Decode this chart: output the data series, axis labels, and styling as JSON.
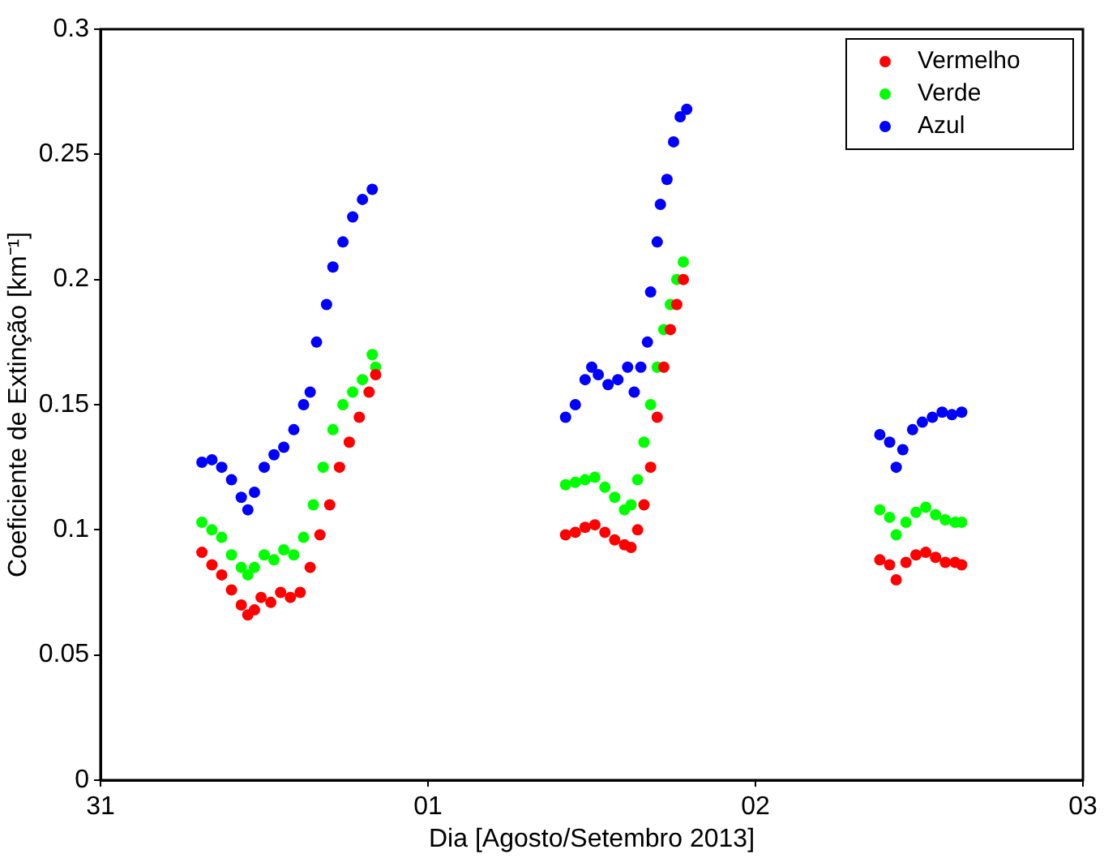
{
  "chart_data": {
    "type": "scatter",
    "xlabel": "Dia [Agosto/Setembro 2013]",
    "ylabel": "Coeficiente de Extinção [km⁻¹]",
    "xlim": [
      "2013-08-31",
      "2013-09-03"
    ],
    "xticks": [
      {
        "value": "2013-08-31",
        "label": "31"
      },
      {
        "value": "2013-09-01",
        "label": "01"
      },
      {
        "value": "2013-09-02",
        "label": "02"
      },
      {
        "value": "2013-09-03",
        "label": "03"
      }
    ],
    "ylim": [
      0,
      0.3
    ],
    "yticks": [
      0,
      0.05,
      0.1,
      0.15,
      0.2,
      0.25,
      0.3
    ],
    "grid": false,
    "legend": "top right",
    "marker": "circle",
    "series": [
      {
        "name": "Vermelho",
        "color": "#ff0000",
        "x": [
          "2013-08-31T07:26",
          "2013-08-31T08:10",
          "2013-08-31T08:53",
          "2013-08-31T09:36",
          "2013-08-31T10:19",
          "2013-08-31T10:48",
          "2013-08-31T11:17",
          "2013-08-31T11:46",
          "2013-08-31T12:29",
          "2013-08-31T13:12",
          "2013-08-31T13:55",
          "2013-08-31T14:38",
          "2013-08-31T15:22",
          "2013-08-31T16:05",
          "2013-08-31T16:48",
          "2013-08-31T17:31",
          "2013-08-31T18:14",
          "2013-08-31T18:58",
          "2013-08-31T19:41",
          "2013-08-31T20:10",
          "2013-09-01T10:05",
          "2013-09-01T10:48",
          "2013-09-01T11:31",
          "2013-09-01T12:14",
          "2013-09-01T12:58",
          "2013-09-01T13:41",
          "2013-09-01T14:24",
          "2013-09-01T14:53",
          "2013-09-01T15:22",
          "2013-09-01T15:50",
          "2013-09-01T16:19",
          "2013-09-01T16:48",
          "2013-09-01T17:17",
          "2013-09-01T17:46",
          "2013-09-01T18:14",
          "2013-09-01T18:43",
          "2013-09-02T09:07",
          "2013-09-02T09:50",
          "2013-09-02T10:19",
          "2013-09-02T11:02",
          "2013-09-02T11:46",
          "2013-09-02T12:29",
          "2013-09-02T13:12",
          "2013-09-02T13:55",
          "2013-09-02T14:38",
          "2013-09-02T15:07"
        ],
        "values": [
          0.091,
          0.086,
          0.082,
          0.076,
          0.07,
          0.066,
          0.068,
          0.073,
          0.071,
          0.075,
          0.073,
          0.075,
          0.085,
          0.098,
          0.11,
          0.125,
          0.135,
          0.145,
          0.155,
          0.162,
          0.098,
          0.099,
          0.101,
          0.102,
          0.099,
          0.096,
          0.094,
          0.093,
          0.1,
          0.11,
          0.125,
          0.145,
          0.165,
          0.18,
          0.19,
          0.2,
          0.088,
          0.086,
          0.08,
          0.087,
          0.09,
          0.091,
          0.089,
          0.087,
          0.087,
          0.086
        ]
      },
      {
        "name": "Verde",
        "color": "#00ff00",
        "x": [
          "2013-08-31T07:26",
          "2013-08-31T08:10",
          "2013-08-31T08:53",
          "2013-08-31T09:36",
          "2013-08-31T10:19",
          "2013-08-31T10:48",
          "2013-08-31T11:17",
          "2013-08-31T12:00",
          "2013-08-31T12:43",
          "2013-08-31T13:26",
          "2013-08-31T14:10",
          "2013-08-31T14:53",
          "2013-08-31T15:36",
          "2013-08-31T16:19",
          "2013-08-31T17:02",
          "2013-08-31T17:46",
          "2013-08-31T18:29",
          "2013-08-31T19:12",
          "2013-08-31T19:55",
          "2013-08-31T20:10",
          "2013-09-01T10:05",
          "2013-09-01T10:48",
          "2013-09-01T11:31",
          "2013-09-01T12:14",
          "2013-09-01T12:58",
          "2013-09-01T13:41",
          "2013-09-01T14:24",
          "2013-09-01T14:53",
          "2013-09-01T15:22",
          "2013-09-01T15:50",
          "2013-09-01T16:19",
          "2013-09-01T16:48",
          "2013-09-01T17:17",
          "2013-09-01T17:46",
          "2013-09-01T18:14",
          "2013-09-01T18:43",
          "2013-09-02T09:07",
          "2013-09-02T09:50",
          "2013-09-02T10:19",
          "2013-09-02T11:02",
          "2013-09-02T11:46",
          "2013-09-02T12:29",
          "2013-09-02T13:12",
          "2013-09-02T13:55",
          "2013-09-02T14:38",
          "2013-09-02T15:07"
        ],
        "values": [
          0.103,
          0.1,
          0.097,
          0.09,
          0.085,
          0.082,
          0.085,
          0.09,
          0.088,
          0.092,
          0.09,
          0.097,
          0.11,
          0.125,
          0.14,
          0.15,
          0.155,
          0.16,
          0.17,
          0.165,
          0.118,
          0.119,
          0.12,
          0.121,
          0.117,
          0.113,
          0.108,
          0.11,
          0.12,
          0.135,
          0.15,
          0.165,
          0.18,
          0.19,
          0.2,
          0.207,
          0.108,
          0.105,
          0.098,
          0.103,
          0.107,
          0.109,
          0.106,
          0.104,
          0.103,
          0.103
        ]
      },
      {
        "name": "Azul",
        "color": "#0000ff",
        "x": [
          "2013-08-31T07:26",
          "2013-08-31T08:10",
          "2013-08-31T08:53",
          "2013-08-31T09:36",
          "2013-08-31T10:19",
          "2013-08-31T10:48",
          "2013-08-31T11:17",
          "2013-08-31T12:00",
          "2013-08-31T12:43",
          "2013-08-31T13:26",
          "2013-08-31T14:10",
          "2013-08-31T14:53",
          "2013-08-31T15:22",
          "2013-08-31T15:50",
          "2013-08-31T16:34",
          "2013-08-31T17:02",
          "2013-08-31T17:46",
          "2013-08-31T18:29",
          "2013-08-31T19:12",
          "2013-08-31T19:55",
          "2013-09-01T10:05",
          "2013-09-01T10:48",
          "2013-09-01T11:31",
          "2013-09-01T12:00",
          "2013-09-01T12:29",
          "2013-09-01T13:12",
          "2013-09-01T13:55",
          "2013-09-01T14:38",
          "2013-09-01T15:07",
          "2013-09-01T15:36",
          "2013-09-01T16:05",
          "2013-09-01T16:19",
          "2013-09-01T16:48",
          "2013-09-01T17:02",
          "2013-09-01T17:31",
          "2013-09-01T18:00",
          "2013-09-01T18:29",
          "2013-09-01T18:58",
          "2013-09-02T09:07",
          "2013-09-02T09:50",
          "2013-09-02T10:19",
          "2013-09-02T10:48",
          "2013-09-02T11:31",
          "2013-09-02T12:14",
          "2013-09-02T12:58",
          "2013-09-02T13:41",
          "2013-09-02T14:24",
          "2013-09-02T15:07"
        ],
        "values": [
          0.127,
          0.128,
          0.125,
          0.12,
          0.113,
          0.108,
          0.115,
          0.125,
          0.13,
          0.133,
          0.14,
          0.15,
          0.155,
          0.175,
          0.19,
          0.205,
          0.215,
          0.225,
          0.232,
          0.236,
          0.145,
          0.15,
          0.16,
          0.165,
          0.162,
          0.158,
          0.16,
          0.165,
          0.155,
          0.165,
          0.175,
          0.195,
          0.215,
          0.23,
          0.24,
          0.255,
          0.265,
          0.268,
          0.138,
          0.135,
          0.125,
          0.132,
          0.14,
          0.143,
          0.145,
          0.147,
          0.146,
          0.147
        ]
      }
    ]
  }
}
